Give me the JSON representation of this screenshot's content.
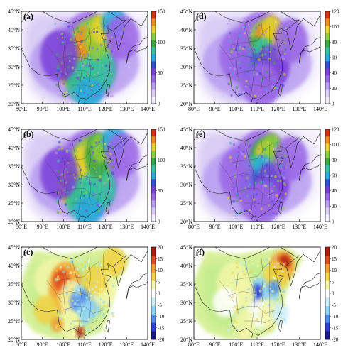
{
  "x_ticks": [
    "80°E",
    "90°E",
    "100°E",
    "110°E",
    "120°E",
    "130°E",
    "140°E"
  ],
  "y_ticks": [
    "45°N",
    "40°N",
    "35°N",
    "30°N",
    "25°N",
    "20°N"
  ],
  "panels": [
    {
      "label": "(a)",
      "kind": "conc",
      "cb_ticks": [
        "150",
        "100",
        "50",
        "0"
      ],
      "cb_max": 150,
      "cb_min": 0
    },
    {
      "label": "(d)",
      "kind": "conc",
      "cb_ticks": [
        "120",
        "100",
        "80",
        "60",
        "40",
        "20",
        "0"
      ],
      "cb_max": 120,
      "cb_min": 0
    },
    {
      "label": "(b)",
      "kind": "conc",
      "cb_ticks": [
        "150",
        "100",
        "50",
        "0"
      ],
      "cb_max": 150,
      "cb_min": 0
    },
    {
      "label": "(e)",
      "kind": "conc",
      "cb_ticks": [
        "120",
        "100",
        "80",
        "60",
        "40",
        "20",
        "0"
      ],
      "cb_max": 120,
      "cb_min": 0
    },
    {
      "label": "(c)",
      "kind": "diff",
      "cb_ticks": [
        "20",
        "15",
        "10",
        "5",
        "0",
        "-5",
        "-10",
        "-15",
        "-20"
      ],
      "cb_max": 20,
      "cb_min": -20
    },
    {
      "label": "(f)",
      "kind": "diff",
      "cb_ticks": [
        "20",
        "15",
        "10",
        "5",
        "0",
        "-5",
        "-10",
        "-15",
        "-20"
      ],
      "cb_max": 20,
      "cb_min": -20
    }
  ],
  "colors": {
    "conc_scale": [
      "#f2eefc",
      "#d9ccf5",
      "#b89ef0",
      "#9966e6",
      "#7a3fd9",
      "#2f4fd6",
      "#2aa8e0",
      "#35c2a0",
      "#3aa642",
      "#8ccf3a",
      "#e8d12a",
      "#f08a1c",
      "#d92f12"
    ],
    "diff_scale": [
      "#1a1a8c",
      "#2f3fd6",
      "#4f8ff0",
      "#8fd3f7",
      "#cdeefb",
      "#ffffff",
      "#f4f7a8",
      "#f2d245",
      "#f29a2c",
      "#e04a1c",
      "#b51a10"
    ]
  }
}
